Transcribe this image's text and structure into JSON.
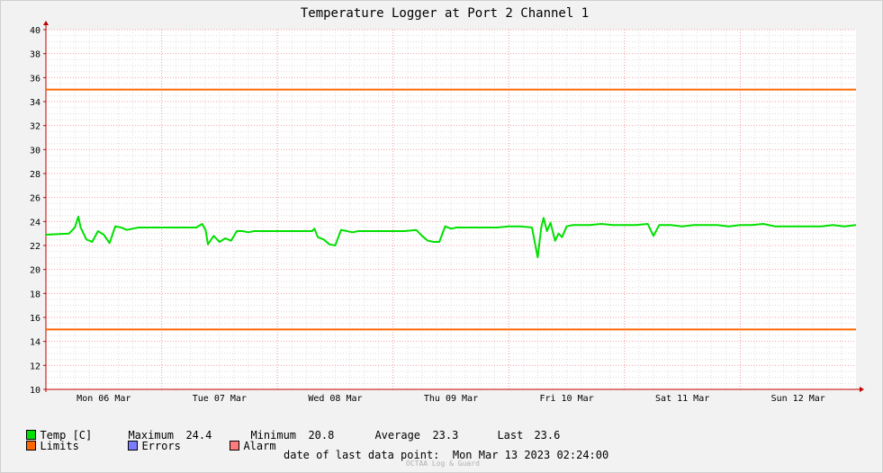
{
  "chart_data": {
    "type": "line",
    "title": "Temperature Logger at Port 2 Channel 1",
    "ylim": [
      10,
      40
    ],
    "yticks": [
      10,
      12,
      14,
      16,
      18,
      20,
      22,
      24,
      26,
      28,
      30,
      32,
      34,
      36,
      38,
      40
    ],
    "xlim": [
      0,
      7
    ],
    "x_ticks": [
      {
        "x": 0.5,
        "label": "Mon 06 Mar"
      },
      {
        "x": 1.5,
        "label": "Tue 07 Mar"
      },
      {
        "x": 2.5,
        "label": "Wed 08 Mar"
      },
      {
        "x": 3.5,
        "label": "Thu 09 Mar"
      },
      {
        "x": 4.5,
        "label": "Fri 10 Mar"
      },
      {
        "x": 5.5,
        "label": "Sat 11 Mar"
      },
      {
        "x": 6.5,
        "label": "Sun 12 Mar"
      }
    ],
    "grid": true,
    "series": [
      {
        "name": "Temp [C]",
        "color": "#00e000",
        "x": [
          0.0,
          0.2,
          0.25,
          0.28,
          0.3,
          0.35,
          0.4,
          0.45,
          0.5,
          0.55,
          0.6,
          0.65,
          0.7,
          0.75,
          0.8,
          0.85,
          0.9,
          1.0,
          1.1,
          1.2,
          1.3,
          1.35,
          1.38,
          1.4,
          1.45,
          1.5,
          1.55,
          1.6,
          1.65,
          1.7,
          1.75,
          1.8,
          1.9,
          2.0,
          2.1,
          2.2,
          2.3,
          2.32,
          2.35,
          2.4,
          2.45,
          2.5,
          2.55,
          2.6,
          2.65,
          2.7,
          2.8,
          2.9,
          3.0,
          3.1,
          3.2,
          3.25,
          3.3,
          3.35,
          3.4,
          3.45,
          3.5,
          3.55,
          3.6,
          3.7,
          3.8,
          3.9,
          4.0,
          4.1,
          4.2,
          4.25,
          4.28,
          4.3,
          4.33,
          4.36,
          4.4,
          4.43,
          4.46,
          4.5,
          4.55,
          4.6,
          4.7,
          4.8,
          4.9,
          5.0,
          5.1,
          5.2,
          5.25,
          5.3,
          5.35,
          5.4,
          5.5,
          5.6,
          5.7,
          5.8,
          5.9,
          6.0,
          6.1,
          6.2,
          6.3,
          6.4,
          6.5,
          6.6,
          6.7,
          6.8,
          6.9,
          7.0
        ],
        "y": [
          22.9,
          23.0,
          23.5,
          24.4,
          23.5,
          22.5,
          22.3,
          23.2,
          22.9,
          22.2,
          23.6,
          23.5,
          23.3,
          23.4,
          23.5,
          23.5,
          23.5,
          23.5,
          23.5,
          23.5,
          23.5,
          23.8,
          23.3,
          22.1,
          22.8,
          22.3,
          22.6,
          22.4,
          23.2,
          23.2,
          23.1,
          23.2,
          23.2,
          23.2,
          23.2,
          23.2,
          23.2,
          23.4,
          22.7,
          22.5,
          22.1,
          22.0,
          23.3,
          23.2,
          23.1,
          23.2,
          23.2,
          23.2,
          23.2,
          23.2,
          23.3,
          22.8,
          22.4,
          22.3,
          22.3,
          23.6,
          23.4,
          23.5,
          23.5,
          23.5,
          23.5,
          23.5,
          23.6,
          23.6,
          23.5,
          21.0,
          23.5,
          24.3,
          23.2,
          23.9,
          22.4,
          23.0,
          22.7,
          23.6,
          23.7,
          23.7,
          23.7,
          23.8,
          23.7,
          23.7,
          23.7,
          23.8,
          22.8,
          23.7,
          23.7,
          23.7,
          23.6,
          23.7,
          23.7,
          23.7,
          23.6,
          23.7,
          23.7,
          23.8,
          23.6,
          23.6,
          23.6,
          23.6,
          23.6,
          23.7,
          23.6,
          23.7
        ]
      },
      {
        "name": "Limits",
        "color": "#ff6600",
        "upper": 35,
        "lower": 15
      }
    ]
  },
  "legend": {
    "temp_label": "Temp [C]",
    "temp_color": "#00e000",
    "maximum_label": "Maximum",
    "maximum_value": "24.4",
    "minimum_label": "Minimum",
    "minimum_value": "20.8",
    "average_label": "Average",
    "average_value": "23.3",
    "last_label": "Last",
    "last_value": "23.6",
    "limits_label": "Limits",
    "limits_color": "#ff6600",
    "errors_label": "Errors",
    "errors_color": "#7b7bff",
    "alarm_label": "Alarm",
    "alarm_color": "#ff7b7b"
  },
  "footer": {
    "date_label": "date of last data point:",
    "date_value": "Mon Mar 13 2023 02:24:00",
    "watermark": "OCTAA Log & Guard"
  }
}
